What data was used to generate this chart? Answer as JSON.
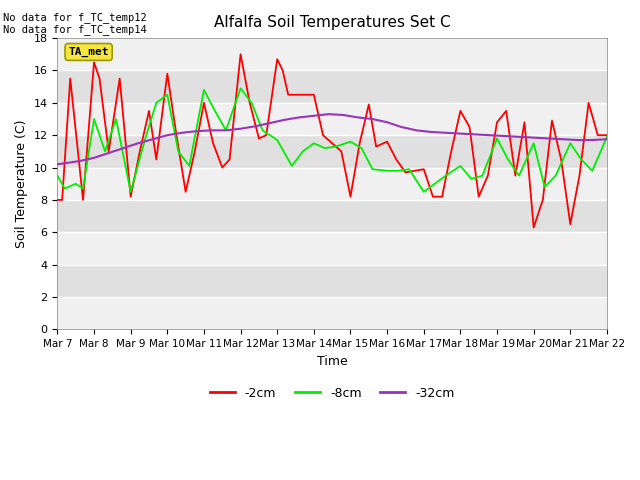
{
  "title": "Alfalfa Soil Temperatures Set C",
  "xlabel": "Time",
  "ylabel": "Soil Temperature (C)",
  "top_left_text": "No data for f_TC_temp12\nNo data for f_TC_temp14",
  "legend_box_label": "TA_met",
  "ylim": [
    0,
    18
  ],
  "yticks": [
    0,
    2,
    4,
    6,
    8,
    10,
    12,
    14,
    16,
    18
  ],
  "x_tick_labels": [
    "Mar 7",
    "Mar 8",
    "Mar 9",
    "Mar 10",
    "Mar 11",
    "Mar 12",
    "Mar 13",
    "Mar 14",
    "Mar 15",
    "Mar 16",
    "Mar 17",
    "Mar 18",
    "Mar 19",
    "Mar 20",
    "Mar 21",
    "Mar 22"
  ],
  "colors": {
    "red": "#ff0000",
    "green": "#00ee00",
    "purple": "#9933bb",
    "bg_light": "#f0f0f0",
    "bg_dark": "#e0e0e0"
  },
  "red_x": [
    0,
    0.13,
    0.35,
    0.7,
    1.0,
    1.15,
    1.4,
    1.7,
    2.0,
    2.25,
    2.5,
    2.7,
    3.0,
    3.25,
    3.5,
    3.75,
    4.0,
    4.25,
    4.5,
    4.7,
    5.0,
    5.25,
    5.5,
    5.7,
    6.0,
    6.15,
    6.3,
    6.5,
    6.7,
    7.0,
    7.25,
    7.5,
    7.75,
    8.0,
    8.25,
    8.5,
    8.7,
    9.0,
    9.25,
    9.5,
    9.75,
    10.0,
    10.25,
    10.5,
    10.75,
    11.0,
    11.25,
    11.5,
    11.75,
    12.0,
    12.25,
    12.5,
    12.75,
    13.0,
    13.25,
    13.5,
    13.75,
    14.0,
    14.25,
    14.5,
    14.75,
    15.0
  ],
  "red_y": [
    8.0,
    8.0,
    15.5,
    8.0,
    16.5,
    15.5,
    11.0,
    15.5,
    8.2,
    11.0,
    13.5,
    10.5,
    15.8,
    12.0,
    8.5,
    11.0,
    14.0,
    11.5,
    10.0,
    10.5,
    17.0,
    14.0,
    11.8,
    12.0,
    16.7,
    16.0,
    14.5,
    14.5,
    14.5,
    14.5,
    12.0,
    11.5,
    11.0,
    8.2,
    11.5,
    13.9,
    11.3,
    11.6,
    10.5,
    9.7,
    9.8,
    9.9,
    8.2,
    8.2,
    11.0,
    13.5,
    12.5,
    8.2,
    9.5,
    12.8,
    13.5,
    9.5,
    12.8,
    6.3,
    8.0,
    12.9,
    10.5,
    6.5,
    9.5,
    14.0,
    12.0,
    12.0
  ],
  "green_x": [
    0,
    0.2,
    0.5,
    0.7,
    1.0,
    1.3,
    1.6,
    2.0,
    2.4,
    2.7,
    3.0,
    3.3,
    3.6,
    4.0,
    4.3,
    4.6,
    5.0,
    5.3,
    5.6,
    6.0,
    6.4,
    6.7,
    7.0,
    7.3,
    7.6,
    8.0,
    8.3,
    8.6,
    9.0,
    9.3,
    9.6,
    10.0,
    10.3,
    10.6,
    11.0,
    11.3,
    11.6,
    12.0,
    12.3,
    12.6,
    13.0,
    13.3,
    13.6,
    14.0,
    14.3,
    14.6,
    15.0
  ],
  "green_y": [
    9.5,
    8.7,
    9.0,
    8.7,
    13.0,
    11.0,
    13.0,
    8.5,
    11.8,
    14.0,
    14.5,
    11.0,
    10.1,
    14.8,
    13.5,
    12.3,
    14.9,
    14.0,
    12.3,
    11.7,
    10.1,
    11.0,
    11.5,
    11.2,
    11.3,
    11.6,
    11.2,
    9.9,
    9.8,
    9.8,
    9.9,
    8.5,
    9.0,
    9.5,
    10.1,
    9.3,
    9.5,
    11.8,
    10.5,
    9.5,
    11.5,
    8.8,
    9.5,
    11.5,
    10.5,
    9.8,
    11.9
  ],
  "purple_x": [
    0,
    0.3,
    0.6,
    1.0,
    1.4,
    1.8,
    2.2,
    2.6,
    3.0,
    3.4,
    3.8,
    4.2,
    4.6,
    5.0,
    5.4,
    5.8,
    6.2,
    6.6,
    7.0,
    7.4,
    7.8,
    8.2,
    8.6,
    9.0,
    9.4,
    9.8,
    10.2,
    10.6,
    11.0,
    11.4,
    11.8,
    12.2,
    12.6,
    13.0,
    13.4,
    13.8,
    14.2,
    14.6,
    15.0
  ],
  "purple_y": [
    10.2,
    10.3,
    10.4,
    10.6,
    10.9,
    11.2,
    11.5,
    11.75,
    12.0,
    12.15,
    12.25,
    12.3,
    12.3,
    12.4,
    12.55,
    12.75,
    12.95,
    13.1,
    13.2,
    13.3,
    13.25,
    13.1,
    13.0,
    12.8,
    12.5,
    12.3,
    12.2,
    12.15,
    12.1,
    12.05,
    12.0,
    11.95,
    11.9,
    11.85,
    11.8,
    11.75,
    11.7,
    11.7,
    11.75
  ]
}
